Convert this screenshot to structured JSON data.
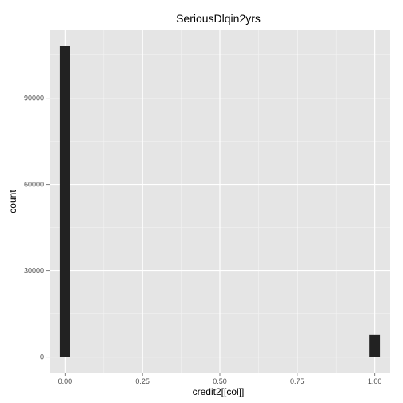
{
  "chart_data": {
    "type": "bar",
    "title": "SeriousDlqin2yrs",
    "xlabel": "credit2[[col]]",
    "ylabel": "count",
    "x_ticks": [
      "0.00",
      "0.25",
      "0.50",
      "0.75",
      "1.00"
    ],
    "y_ticks": [
      "0",
      "30000",
      "60000",
      "90000"
    ],
    "xlim": [
      -0.05,
      1.05
    ],
    "ylim": [
      -5400,
      113500
    ],
    "bin_width": 0.0333,
    "bars": [
      {
        "x": 0,
        "count": 108000
      },
      {
        "x": 1,
        "count": 7700
      }
    ],
    "grid": true,
    "panel_color": "#e5e5e5",
    "bar_color": "#222222"
  }
}
